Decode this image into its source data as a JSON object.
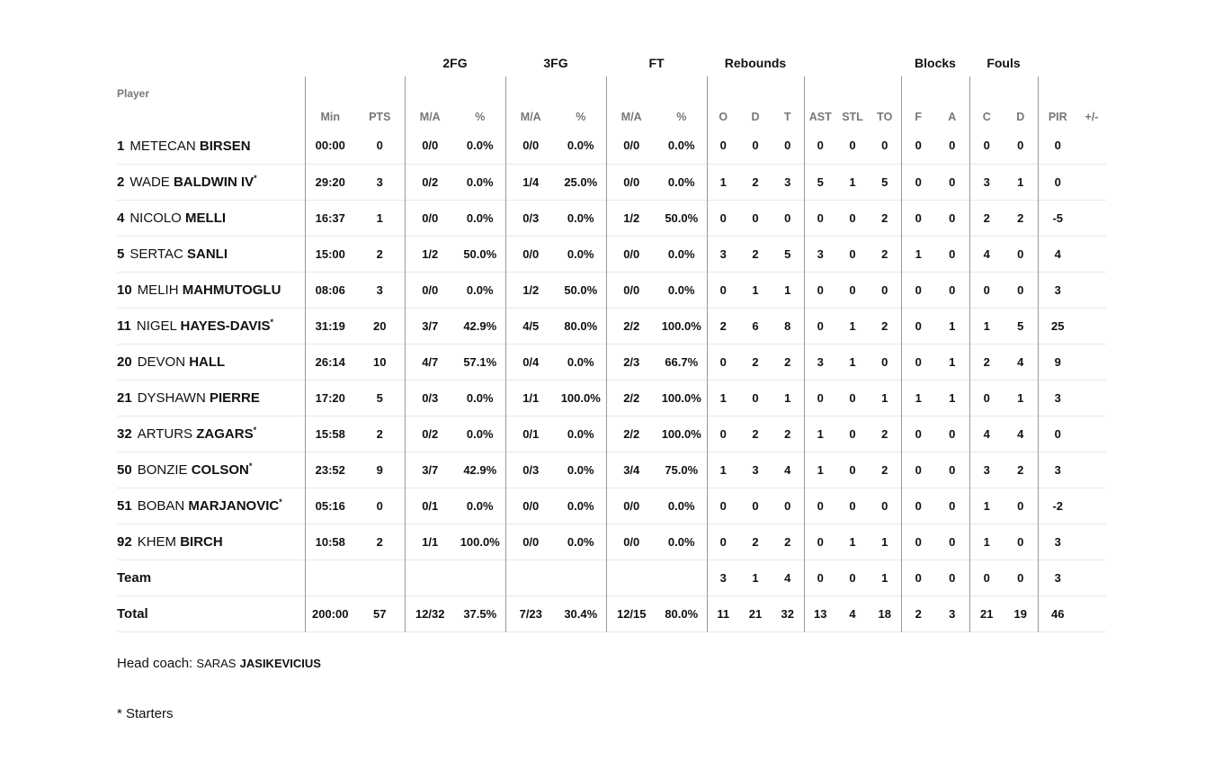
{
  "groups": {
    "fg2": "2FG",
    "fg3": "3FG",
    "ft": "FT",
    "reb": "Rebounds",
    "blk": "Blocks",
    "fouls": "Fouls"
  },
  "headers": [
    "Player",
    "Min",
    "PTS",
    "M/A",
    "%",
    "M/A",
    "%",
    "M/A",
    "%",
    "O",
    "D",
    "T",
    "AST",
    "STL",
    "TO",
    "F",
    "A",
    "C",
    "D",
    "PIR",
    "+/-"
  ],
  "rows": [
    {
      "no": "1",
      "first": "METECAN",
      "last": "BIRSEN",
      "star": "",
      "stats": [
        "00:00",
        "0",
        "0/0",
        "0.0%",
        "0/0",
        "0.0%",
        "0/0",
        "0.0%",
        "0",
        "0",
        "0",
        "0",
        "0",
        "0",
        "0",
        "0",
        "0",
        "0",
        "0",
        ""
      ]
    },
    {
      "no": "2",
      "first": "WADE",
      "last": "BALDWIN IV",
      "star": "*",
      "stats": [
        "29:20",
        "3",
        "0/2",
        "0.0%",
        "1/4",
        "25.0%",
        "0/0",
        "0.0%",
        "1",
        "2",
        "3",
        "5",
        "1",
        "5",
        "0",
        "0",
        "3",
        "1",
        "0",
        ""
      ]
    },
    {
      "no": "4",
      "first": "NICOLO",
      "last": "MELLI",
      "star": "",
      "stats": [
        "16:37",
        "1",
        "0/0",
        "0.0%",
        "0/3",
        "0.0%",
        "1/2",
        "50.0%",
        "0",
        "0",
        "0",
        "0",
        "0",
        "2",
        "0",
        "0",
        "2",
        "2",
        "-5",
        ""
      ]
    },
    {
      "no": "5",
      "first": "SERTAC",
      "last": "SANLI",
      "star": "",
      "stats": [
        "15:00",
        "2",
        "1/2",
        "50.0%",
        "0/0",
        "0.0%",
        "0/0",
        "0.0%",
        "3",
        "2",
        "5",
        "3",
        "0",
        "2",
        "1",
        "0",
        "4",
        "0",
        "4",
        ""
      ]
    },
    {
      "no": "10",
      "first": "MELIH",
      "last": "MAHMUTOGLU",
      "star": "",
      "stats": [
        "08:06",
        "3",
        "0/0",
        "0.0%",
        "1/2",
        "50.0%",
        "0/0",
        "0.0%",
        "0",
        "1",
        "1",
        "0",
        "0",
        "0",
        "0",
        "0",
        "0",
        "0",
        "3",
        ""
      ]
    },
    {
      "no": "11",
      "first": "NIGEL",
      "last": "HAYES-DAVIS",
      "star": "*",
      "stats": [
        "31:19",
        "20",
        "3/7",
        "42.9%",
        "4/5",
        "80.0%",
        "2/2",
        "100.0%",
        "2",
        "6",
        "8",
        "0",
        "1",
        "2",
        "0",
        "1",
        "1",
        "5",
        "25",
        ""
      ]
    },
    {
      "no": "20",
      "first": "DEVON",
      "last": "HALL",
      "star": "",
      "stats": [
        "26:14",
        "10",
        "4/7",
        "57.1%",
        "0/4",
        "0.0%",
        "2/3",
        "66.7%",
        "0",
        "2",
        "2",
        "3",
        "1",
        "0",
        "0",
        "1",
        "2",
        "4",
        "9",
        ""
      ]
    },
    {
      "no": "21",
      "first": "DYSHAWN",
      "last": "PIERRE",
      "star": "",
      "stats": [
        "17:20",
        "5",
        "0/3",
        "0.0%",
        "1/1",
        "100.0%",
        "2/2",
        "100.0%",
        "1",
        "0",
        "1",
        "0",
        "0",
        "1",
        "1",
        "1",
        "0",
        "1",
        "3",
        ""
      ]
    },
    {
      "no": "32",
      "first": "ARTURS",
      "last": "ZAGARS",
      "star": "*",
      "stats": [
        "15:58",
        "2",
        "0/2",
        "0.0%",
        "0/1",
        "0.0%",
        "2/2",
        "100.0%",
        "0",
        "2",
        "2",
        "1",
        "0",
        "2",
        "0",
        "0",
        "4",
        "4",
        "0",
        ""
      ]
    },
    {
      "no": "50",
      "first": "BONZIE",
      "last": "COLSON",
      "star": "*",
      "stats": [
        "23:52",
        "9",
        "3/7",
        "42.9%",
        "0/3",
        "0.0%",
        "3/4",
        "75.0%",
        "1",
        "3",
        "4",
        "1",
        "0",
        "2",
        "0",
        "0",
        "3",
        "2",
        "3",
        ""
      ]
    },
    {
      "no": "51",
      "first": "BOBAN",
      "last": "MARJANOVIC",
      "star": "*",
      "stats": [
        "05:16",
        "0",
        "0/1",
        "0.0%",
        "0/0",
        "0.0%",
        "0/0",
        "0.0%",
        "0",
        "0",
        "0",
        "0",
        "0",
        "0",
        "0",
        "0",
        "1",
        "0",
        "-2",
        ""
      ]
    },
    {
      "no": "92",
      "first": "KHEM",
      "last": "BIRCH",
      "star": "",
      "stats": [
        "10:58",
        "2",
        "1/1",
        "100.0%",
        "0/0",
        "0.0%",
        "0/0",
        "0.0%",
        "0",
        "2",
        "2",
        "0",
        "1",
        "1",
        "0",
        "0",
        "1",
        "0",
        "3",
        ""
      ]
    }
  ],
  "team": {
    "label": "Team",
    "stats": [
      "",
      "",
      "",
      "",
      "",
      "",
      "",
      "",
      "3",
      "1",
      "4",
      "0",
      "0",
      "1",
      "0",
      "0",
      "0",
      "0",
      "3",
      ""
    ]
  },
  "total": {
    "label": "Total",
    "stats": [
      "200:00",
      "57",
      "12/32",
      "37.5%",
      "7/23",
      "30.4%",
      "12/15",
      "80.0%",
      "11",
      "21",
      "32",
      "13",
      "4",
      "18",
      "2",
      "3",
      "21",
      "19",
      "46",
      ""
    ]
  },
  "coach": {
    "label": "Head coach:",
    "first": "SARAS",
    "last": "JASIKEVICIUS"
  },
  "footnote": "* Starters"
}
